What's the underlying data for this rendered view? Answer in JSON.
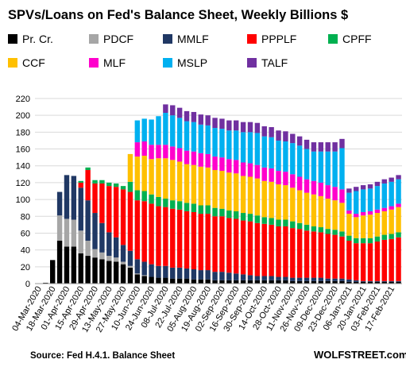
{
  "title": "SPVs/Loans  on Fed's Balance Sheet, Weekly Billions $",
  "source": "Source: Fed H.4.1. Balance Sheet",
  "brand": "WOLFSTREET.com",
  "chart_data": {
    "type": "bar",
    "stacked": true,
    "ylim": [
      0,
      220
    ],
    "yticks": [
      0,
      20,
      40,
      60,
      80,
      100,
      120,
      140,
      160,
      180,
      200,
      220
    ],
    "grid": true,
    "legend_position": "top",
    "x": [
      "04-Mar-2020",
      "11-Mar-2020",
      "18-Mar-2020",
      "25-Mar-2020",
      "01-Apr-2020",
      "08-Apr-2020",
      "15-Apr-2020",
      "22-Apr-2020",
      "29-Apr-2020",
      "06-May-2020",
      "13-May-2020",
      "20-May-2020",
      "27-May-2020",
      "03-Jun-2020",
      "10-Jun-2020",
      "17-Jun-2020",
      "24-Jun-2020",
      "01-Jul-2020",
      "08-Jul-2020",
      "15-Jul-2020",
      "22-Jul-2020",
      "29-Jul-2020",
      "05-Aug-2020",
      "12-Aug-2020",
      "19-Aug-2020",
      "26-Aug-2020",
      "02-Sep-2020",
      "09-Sep-2020",
      "16-Sep-2020",
      "23-Sep-2020",
      "30-Sep-2020",
      "07-Oct-2020",
      "14-Oct-2020",
      "21-Oct-2020",
      "28-Oct-2020",
      "04-Nov-2020",
      "11-Nov-2020",
      "18-Nov-2020",
      "26-Nov-2020",
      "02-Dec-2020",
      "09-Dec-2020",
      "16-Dec-2020",
      "23-Dec-2020",
      "30-Dec-2020",
      "06-Jan-2021",
      "13-Jan-2021",
      "20-Jan-2021",
      "27-Jan-2021",
      "03-Feb-2021",
      "10-Feb-2021",
      "17-Feb-2021",
      "24-Feb-2021"
    ],
    "xtick_labels": [
      "04-Mar-2020",
      "18-Mar-2020",
      "01-Apr-2020",
      "15-Apr-2020",
      "29-Apr-2020",
      "13-May-2020",
      "27-May-2020",
      "10-Jun-2020",
      "24-Jun-2020",
      "08-Jul-2020",
      "22-Jul-2020",
      "05-Aug-2020",
      "19-Aug-2020",
      "02-Sep-2020",
      "16-Sep-2020",
      "30-Sep-2020",
      "14-Oct-2020",
      "28-Oct-2020",
      "11-Nov-2020",
      "26-Nov-2020",
      "09-Dec-2020",
      "23-Dec-2020",
      "06-Jan-2021",
      "20-Jan-2021",
      "03-Feb-2021",
      "17-Feb-2021"
    ],
    "series": [
      {
        "name": "Pr. Cr.",
        "color": "#000000",
        "values": [
          0,
          1,
          28,
          51,
          44,
          44,
          36,
          33,
          31,
          29,
          27,
          26,
          23,
          19,
          11,
          9,
          8,
          7,
          7,
          6,
          6,
          6,
          5,
          5,
          5,
          4,
          4,
          4,
          4,
          4,
          4,
          4,
          4,
          4,
          4,
          4,
          3,
          3,
          3,
          3,
          3,
          3,
          3,
          3,
          2,
          2,
          2,
          2,
          2,
          2,
          2,
          2
        ]
      },
      {
        "name": "PDCF",
        "color": "#a6a6a6",
        "values": [
          0,
          0,
          0,
          30,
          33,
          32,
          27,
          18,
          10,
          8,
          6,
          5,
          3,
          2,
          1,
          1,
          0,
          0,
          0,
          0,
          0,
          0,
          0,
          0,
          0,
          0,
          0,
          0,
          0,
          0,
          0,
          0,
          0,
          0,
          0,
          0,
          0,
          0,
          0,
          0,
          0,
          0,
          0,
          0,
          0,
          0,
          0,
          0,
          0,
          0,
          0,
          0
        ]
      },
      {
        "name": "MMLF",
        "color": "#203864",
        "values": [
          0,
          0,
          0,
          28,
          52,
          52,
          51,
          48,
          43,
          35,
          28,
          24,
          20,
          18,
          17,
          16,
          15,
          14,
          14,
          13,
          13,
          12,
          12,
          11,
          11,
          10,
          10,
          9,
          8,
          7,
          6,
          5,
          5,
          5,
          4,
          4,
          4,
          4,
          4,
          4,
          4,
          3,
          3,
          3,
          3,
          2,
          1,
          1,
          1,
          1,
          1,
          1
        ]
      },
      {
        "name": "PPPLF",
        "color": "#ff0000",
        "values": [
          0,
          0,
          0,
          0,
          0,
          0,
          6,
          36,
          35,
          47,
          55,
          60,
          66,
          70,
          70,
          72,
          72,
          71,
          70,
          70,
          69,
          68,
          68,
          67,
          67,
          66,
          66,
          65,
          65,
          64,
          64,
          63,
          62,
          61,
          60,
          60,
          59,
          58,
          56,
          55,
          54,
          53,
          52,
          50,
          46,
          44,
          45,
          45,
          47,
          49,
          50,
          52
        ]
      },
      {
        "name": "CPFF",
        "color": "#00b050",
        "values": [
          0,
          0,
          0,
          0,
          0,
          0,
          2,
          3,
          4,
          4,
          4,
          4,
          4,
          12,
          12,
          12,
          11,
          11,
          10,
          10,
          10,
          10,
          10,
          10,
          10,
          10,
          9,
          9,
          9,
          9,
          9,
          9,
          8,
          8,
          8,
          8,
          8,
          7,
          7,
          6,
          6,
          6,
          6,
          6,
          6,
          6,
          6,
          6,
          6,
          6,
          6,
          6
        ]
      },
      {
        "name": "CCF",
        "color": "#ffc000",
        "values": [
          0,
          0,
          0,
          0,
          0,
          0,
          0,
          0,
          0,
          0,
          0,
          0,
          0,
          33,
          40,
          42,
          42,
          46,
          48,
          48,
          47,
          46,
          46,
          46,
          45,
          45,
          45,
          45,
          45,
          44,
          44,
          44,
          43,
          43,
          42,
          41,
          40,
          39,
          38,
          38,
          37,
          36,
          35,
          34,
          26,
          25,
          27,
          28,
          28,
          28,
          29,
          30
        ]
      },
      {
        "name": "MLF",
        "color": "#ff00cc",
        "values": [
          0,
          0,
          0,
          0,
          0,
          0,
          0,
          0,
          0,
          0,
          0,
          0,
          0,
          0,
          17,
          17,
          17,
          16,
          16,
          16,
          16,
          16,
          16,
          16,
          16,
          16,
          16,
          16,
          16,
          16,
          16,
          16,
          16,
          16,
          16,
          16,
          16,
          16,
          16,
          16,
          16,
          16,
          16,
          16,
          4,
          4,
          4,
          4,
          4,
          4,
          4,
          4
        ]
      },
      {
        "name": "MSLP",
        "color": "#00b0f0",
        "values": [
          0,
          0,
          0,
          0,
          0,
          0,
          0,
          0,
          0,
          0,
          0,
          0,
          0,
          0,
          26,
          27,
          30,
          34,
          38,
          37,
          36,
          35,
          35,
          34,
          34,
          34,
          34,
          34,
          35,
          36,
          37,
          38,
          37,
          37,
          36,
          36,
          37,
          37,
          36,
          35,
          37,
          40,
          42,
          49,
          21,
          27,
          27,
          27,
          28,
          29,
          29,
          29
        ]
      },
      {
        "name": "TALF",
        "color": "#7030a0",
        "values": [
          0,
          0,
          0,
          0,
          0,
          0,
          0,
          0,
          0,
          0,
          0,
          0,
          0,
          0,
          0,
          0,
          0,
          0,
          10,
          12,
          12,
          12,
          12,
          12,
          12,
          12,
          12,
          12,
          12,
          12,
          12,
          12,
          12,
          12,
          12,
          12,
          11,
          11,
          11,
          11,
          11,
          11,
          11,
          11,
          5,
          5,
          5,
          5,
          5,
          5,
          5,
          5
        ]
      }
    ]
  }
}
